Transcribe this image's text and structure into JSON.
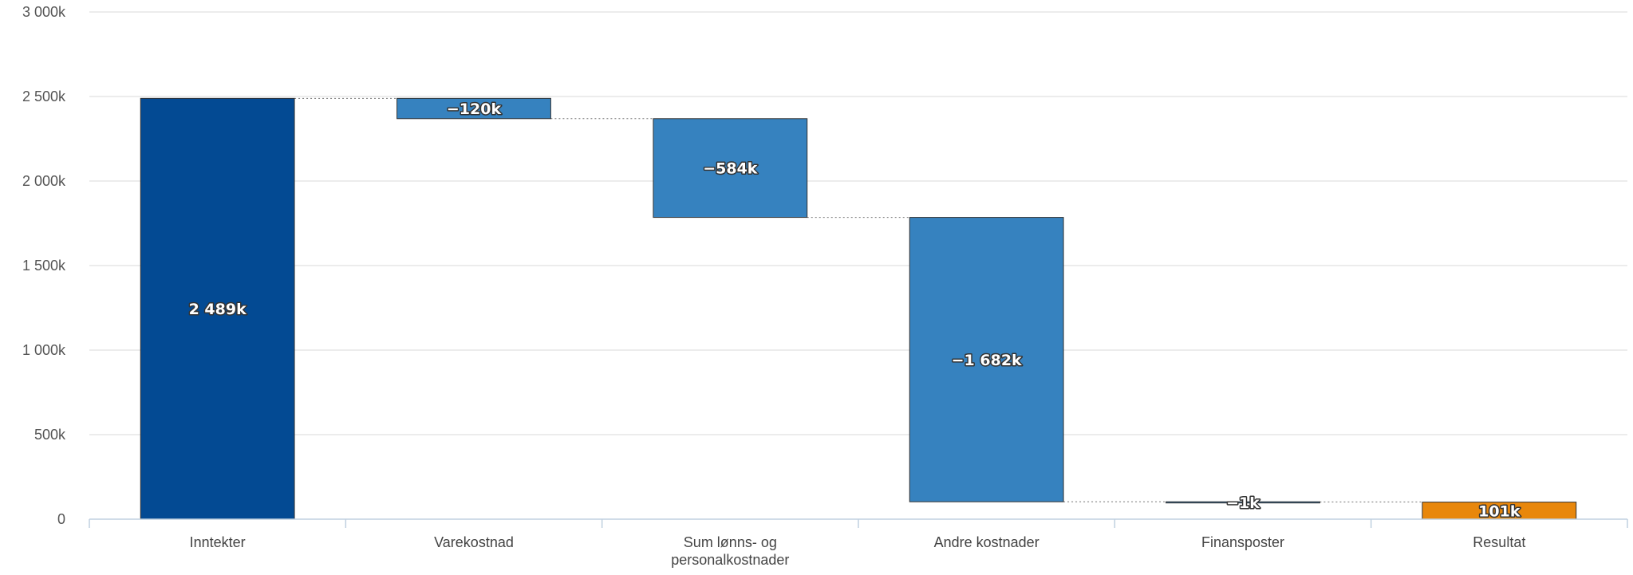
{
  "chart_data": {
    "type": "waterfall",
    "categories": [
      "Inntekter",
      "Varekostnad",
      "Sum lønns- og personalkostnader",
      "Andre kostnader",
      "Finansposter",
      "Resultat"
    ],
    "category_label_lines": [
      [
        "Inntekter"
      ],
      [
        "Varekostnad"
      ],
      [
        "Sum lønns- og",
        "personalkostnader"
      ],
      [
        "Andre kostnader"
      ],
      [
        "Finansposter"
      ],
      [
        "Resultat"
      ]
    ],
    "values": [
      2489,
      -120,
      -584,
      -1682,
      -1,
      101
    ],
    "kinds": [
      "total",
      "delta",
      "delta",
      "delta",
      "delta",
      "total"
    ],
    "data_labels": [
      "2 489k",
      "−120k",
      "−584k",
      "−1 682k",
      "−1k",
      "101k"
    ],
    "unit": "k",
    "ylim": [
      0,
      3000
    ],
    "yticks": [
      0,
      500,
      1000,
      1500,
      2000,
      2500,
      3000
    ],
    "ytick_labels": [
      "0",
      "500k",
      "1 000k",
      "1 500k",
      "2 000k",
      "2 500k",
      "3 000k"
    ],
    "grid": true,
    "legend": "none",
    "colors": {
      "total": "#034a93",
      "delta": "#3682bf",
      "result": "#e8870c",
      "grid": "#e6e6e6",
      "axis": "#c0d0e0",
      "connector": "#777777"
    }
  }
}
